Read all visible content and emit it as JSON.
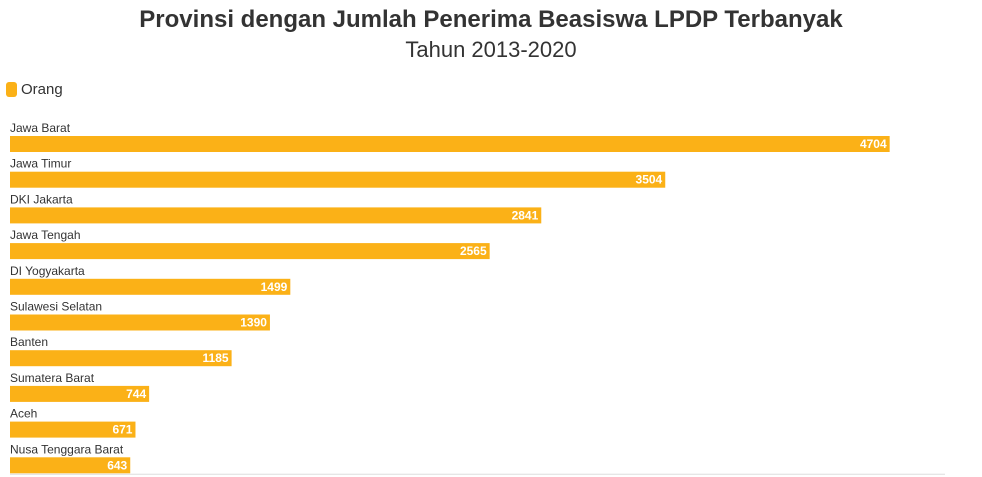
{
  "colors": {
    "bar": "#FBB117",
    "axis": "#dddddd",
    "text": "#333333"
  },
  "chart_data": {
    "type": "bar",
    "orientation": "horizontal",
    "title": "Provinsi dengan Jumlah Penerima Beasiswa LPDP Terbanyak",
    "subtitle": "Tahun 2013-2020",
    "legend": {
      "position": "top-left",
      "entries": [
        "Orang"
      ]
    },
    "categories": [
      "Jawa Barat",
      "Jawa Timur",
      "DKI Jakarta",
      "Jawa Tengah",
      "DI Yogyakarta",
      "Sulawesi Selatan",
      "Banten",
      "Sumatera Barat",
      "Aceh",
      "Nusa Tenggara Barat"
    ],
    "series": [
      {
        "name": "Orang",
        "values": [
          4704,
          3504,
          2841,
          2565,
          1499,
          1390,
          1185,
          744,
          671,
          643
        ]
      }
    ],
    "xlim": [
      0,
      5000
    ],
    "grid": false
  }
}
